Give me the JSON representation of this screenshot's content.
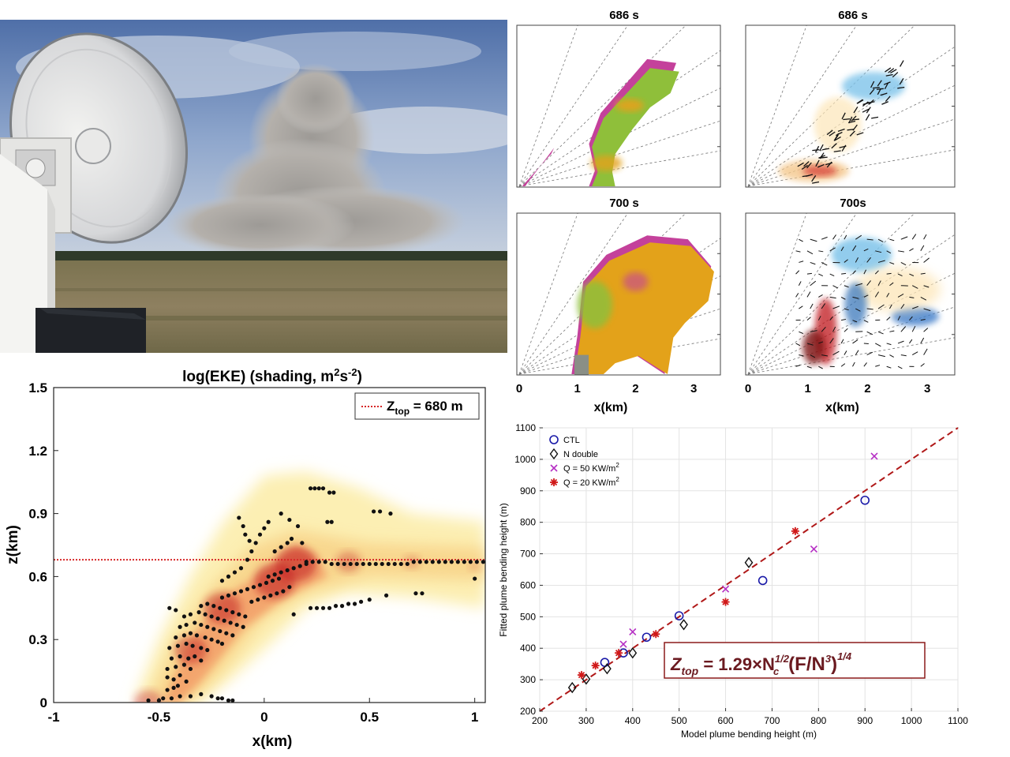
{
  "photo": {
    "description_icon": "radar-dish-photo-icon"
  },
  "rhi": {
    "panels": [
      {
        "title": "686 s",
        "kind": "reflectivity"
      },
      {
        "title": "686 s",
        "kind": "vorticity"
      },
      {
        "title": "700 s",
        "kind": "reflectivity"
      },
      {
        "title": "700s",
        "kind": "vorticity"
      }
    ],
    "x_ticks": [
      "0",
      "1",
      "2",
      "3"
    ],
    "xlabel": "x(km)"
  },
  "chart_data": [
    {
      "type": "heatmap",
      "title": "log(EKE) (shading, m2s-2)",
      "title_parts": {
        "pre": "log(EKE) (shading, m",
        "sup1": "2",
        "mid": "s",
        "sup2": "-2",
        "post": ")"
      },
      "xlabel": "x(km)",
      "ylabel": "z(km)",
      "xlim": [
        -1,
        1.05
      ],
      "ylim": [
        0,
        1.5
      ],
      "x_ticks": [
        -1,
        -0.5,
        0,
        0.5,
        1
      ],
      "y_ticks": [
        0,
        0.3,
        0.6,
        0.9,
        1.2,
        1.5
      ],
      "x_tick_labels": [
        "-1",
        "-0.5",
        "0",
        "0.5",
        "1"
      ],
      "y_tick_labels": [
        "0",
        "0.3",
        "0.6",
        "0.9",
        "1.2",
        "1.5"
      ],
      "legend": {
        "label_pre": "Z",
        "label_sub": "top",
        "label_post": " = 680 m",
        "placement": "top-right",
        "color": "#d62728"
      },
      "reference_line": {
        "z": 0.68,
        "style": "dotted",
        "color": "#d62728"
      },
      "scatter_points": [
        [
          -0.55,
          0.01
        ],
        [
          -0.5,
          0.01
        ],
        [
          -0.48,
          0.02
        ],
        [
          -0.44,
          0.02
        ],
        [
          -0.4,
          0.03
        ],
        [
          -0.35,
          0.03
        ],
        [
          -0.3,
          0.04
        ],
        [
          -0.25,
          0.03
        ],
        [
          -0.22,
          0.02
        ],
        [
          -0.2,
          0.02
        ],
        [
          -0.17,
          0.01
        ],
        [
          -0.15,
          0.01
        ],
        [
          -0.46,
          0.06
        ],
        [
          -0.43,
          0.07
        ],
        [
          -0.41,
          0.08
        ],
        [
          -0.46,
          0.12
        ],
        [
          -0.43,
          0.11
        ],
        [
          -0.4,
          0.13
        ],
        [
          -0.37,
          0.1
        ],
        [
          -0.46,
          0.16
        ],
        [
          -0.42,
          0.17
        ],
        [
          -0.38,
          0.18
        ],
        [
          -0.35,
          0.16
        ],
        [
          -0.44,
          0.21
        ],
        [
          -0.4,
          0.22
        ],
        [
          -0.36,
          0.21
        ],
        [
          -0.33,
          0.22
        ],
        [
          -0.3,
          0.2
        ],
        [
          -0.45,
          0.26
        ],
        [
          -0.41,
          0.27
        ],
        [
          -0.37,
          0.28
        ],
        [
          -0.34,
          0.27
        ],
        [
          -0.3,
          0.26
        ],
        [
          -0.27,
          0.25
        ],
        [
          -0.42,
          0.31
        ],
        [
          -0.38,
          0.32
        ],
        [
          -0.35,
          0.33
        ],
        [
          -0.32,
          0.32
        ],
        [
          -0.28,
          0.31
        ],
        [
          -0.25,
          0.3
        ],
        [
          -0.22,
          0.29
        ],
        [
          -0.2,
          0.28
        ],
        [
          -0.4,
          0.36
        ],
        [
          -0.37,
          0.37
        ],
        [
          -0.33,
          0.38
        ],
        [
          -0.3,
          0.37
        ],
        [
          -0.27,
          0.36
        ],
        [
          -0.24,
          0.35
        ],
        [
          -0.21,
          0.34
        ],
        [
          -0.18,
          0.33
        ],
        [
          -0.15,
          0.32
        ],
        [
          -0.38,
          0.41
        ],
        [
          -0.35,
          0.42
        ],
        [
          -0.31,
          0.43
        ],
        [
          -0.28,
          0.42
        ],
        [
          -0.25,
          0.41
        ],
        [
          -0.22,
          0.4
        ],
        [
          -0.19,
          0.39
        ],
        [
          -0.16,
          0.38
        ],
        [
          -0.13,
          0.37
        ],
        [
          -0.1,
          0.36
        ],
        [
          -0.45,
          0.45
        ],
        [
          -0.42,
          0.44
        ],
        [
          -0.3,
          0.46
        ],
        [
          -0.27,
          0.47
        ],
        [
          -0.24,
          0.46
        ],
        [
          -0.21,
          0.45
        ],
        [
          -0.18,
          0.44
        ],
        [
          -0.15,
          0.43
        ],
        [
          -0.12,
          0.42
        ],
        [
          -0.09,
          0.41
        ],
        [
          -0.2,
          0.5
        ],
        [
          -0.17,
          0.51
        ],
        [
          -0.14,
          0.52
        ],
        [
          -0.11,
          0.53
        ],
        [
          -0.08,
          0.54
        ],
        [
          -0.05,
          0.55
        ],
        [
          -0.02,
          0.56
        ],
        [
          0.01,
          0.57
        ],
        [
          0.04,
          0.58
        ],
        [
          0.07,
          0.59
        ],
        [
          -0.06,
          0.48
        ],
        [
          -0.03,
          0.49
        ],
        [
          0.0,
          0.5
        ],
        [
          0.03,
          0.51
        ],
        [
          0.06,
          0.52
        ],
        [
          0.09,
          0.53
        ],
        [
          0.12,
          0.55
        ],
        [
          0.02,
          0.6
        ],
        [
          0.05,
          0.61
        ],
        [
          0.08,
          0.62
        ],
        [
          0.11,
          0.63
        ],
        [
          0.14,
          0.64
        ],
        [
          0.17,
          0.65
        ],
        [
          0.2,
          0.66
        ],
        [
          0.2,
          0.67
        ],
        [
          0.23,
          0.67
        ],
        [
          0.26,
          0.67
        ],
        [
          0.29,
          0.67
        ],
        [
          0.32,
          0.66
        ],
        [
          0.35,
          0.66
        ],
        [
          0.38,
          0.66
        ],
        [
          0.41,
          0.66
        ],
        [
          0.44,
          0.66
        ],
        [
          0.47,
          0.66
        ],
        [
          0.5,
          0.66
        ],
        [
          0.53,
          0.66
        ],
        [
          0.56,
          0.66
        ],
        [
          0.59,
          0.66
        ],
        [
          0.62,
          0.66
        ],
        [
          0.65,
          0.66
        ],
        [
          0.68,
          0.66
        ],
        [
          0.71,
          0.67
        ],
        [
          0.74,
          0.67
        ],
        [
          0.77,
          0.67
        ],
        [
          0.8,
          0.67
        ],
        [
          0.83,
          0.67
        ],
        [
          0.86,
          0.67
        ],
        [
          0.89,
          0.67
        ],
        [
          0.92,
          0.67
        ],
        [
          0.95,
          0.67
        ],
        [
          0.98,
          0.67
        ],
        [
          1.01,
          0.67
        ],
        [
          1.04,
          0.67
        ],
        [
          -0.2,
          0.58
        ],
        [
          -0.17,
          0.6
        ],
        [
          -0.14,
          0.62
        ],
        [
          -0.11,
          0.64
        ],
        [
          -0.08,
          0.68
        ],
        [
          -0.06,
          0.72
        ],
        [
          -0.04,
          0.76
        ],
        [
          -0.02,
          0.8
        ],
        [
          0.0,
          0.83
        ],
        [
          0.02,
          0.86
        ],
        [
          -0.12,
          0.88
        ],
        [
          -0.1,
          0.84
        ],
        [
          -0.09,
          0.8
        ],
        [
          -0.07,
          0.77
        ],
        [
          0.08,
          0.9
        ],
        [
          0.12,
          0.87
        ],
        [
          0.16,
          0.84
        ],
        [
          0.13,
          0.78
        ],
        [
          0.18,
          0.76
        ],
        [
          0.22,
          1.02
        ],
        [
          0.24,
          1.02
        ],
        [
          0.26,
          1.02
        ],
        [
          0.28,
          1.02
        ],
        [
          0.31,
          1.0
        ],
        [
          0.33,
          1.0
        ],
        [
          0.22,
          0.45
        ],
        [
          0.25,
          0.45
        ],
        [
          0.28,
          0.45
        ],
        [
          0.31,
          0.45
        ],
        [
          0.34,
          0.46
        ],
        [
          0.37,
          0.46
        ],
        [
          0.4,
          0.47
        ],
        [
          0.43,
          0.47
        ],
        [
          0.46,
          0.48
        ],
        [
          0.5,
          0.49
        ],
        [
          0.52,
          0.91
        ],
        [
          0.55,
          0.91
        ],
        [
          0.6,
          0.9
        ],
        [
          0.58,
          0.51
        ],
        [
          0.72,
          0.52
        ],
        [
          0.75,
          0.52
        ],
        [
          1.0,
          0.59
        ],
        [
          0.05,
          0.72
        ],
        [
          0.08,
          0.74
        ],
        [
          0.11,
          0.76
        ],
        [
          0.14,
          0.42
        ],
        [
          0.3,
          0.86
        ],
        [
          0.32,
          0.86
        ]
      ],
      "eke_core": [
        {
          "x": -0.55,
          "z": 0.0,
          "w": 0.7
        },
        {
          "x": -0.35,
          "z": 0.25,
          "w": 0.8
        },
        {
          "x": -0.2,
          "z": 0.45,
          "w": 0.9
        },
        {
          "x": 0.05,
          "z": 0.58,
          "w": 1.0
        },
        {
          "x": 0.15,
          "z": 0.66,
          "w": 1.0
        },
        {
          "x": 0.4,
          "z": 0.67,
          "w": 0.6
        },
        {
          "x": 0.7,
          "z": 0.67,
          "w": 0.4
        },
        {
          "x": 1.0,
          "z": 0.65,
          "w": 0.3
        }
      ]
    },
    {
      "type": "scatter",
      "xlabel": "Model plume bending height (m)",
      "ylabel": "Fitted plume bending height (m)",
      "xlim": [
        200,
        1100
      ],
      "ylim": [
        200,
        1100
      ],
      "x_ticks": [
        200,
        300,
        400,
        500,
        600,
        700,
        800,
        900,
        1000,
        1100
      ],
      "y_ticks": [
        200,
        300,
        400,
        500,
        600,
        700,
        800,
        900,
        1000,
        1100
      ],
      "x_tick_labels": [
        "200",
        "300",
        "400",
        "500",
        "600",
        "700",
        "800",
        "900",
        "1000",
        "1100"
      ],
      "y_tick_labels": [
        "200",
        "300",
        "400",
        "500",
        "600",
        "700",
        "800",
        "900",
        "1000",
        "1100"
      ],
      "legend_placement": "top-left",
      "fit_line": {
        "slope": 1,
        "intercept": 0,
        "style": "dashed",
        "color": "#b01818"
      },
      "series": [
        {
          "name": "CTL",
          "marker": "circle",
          "color": "#1a1aa8",
          "points": [
            [
              340,
              355
            ],
            [
              380,
              385
            ],
            [
              430,
              435
            ],
            [
              500,
              503
            ],
            [
              680,
              615
            ],
            [
              900,
              870
            ]
          ]
        },
        {
          "name": "N double",
          "marker": "diamond",
          "color": "#111111",
          "points": [
            [
              270,
              275
            ],
            [
              300,
              302
            ],
            [
              345,
              335
            ],
            [
              400,
              385
            ],
            [
              510,
              475
            ],
            [
              650,
              672
            ]
          ]
        },
        {
          "name": "Q = 50 KW/m2",
          "name_parts": {
            "pre": "Q = 50 KW/m",
            "sup": "2"
          },
          "marker": "x",
          "color": "#b52fc4",
          "points": [
            [
              380,
              413
            ],
            [
              400,
              452
            ],
            [
              600,
              588
            ],
            [
              790,
              715
            ],
            [
              920,
              1010
            ]
          ]
        },
        {
          "name": "Q = 20 KW/m2",
          "name_parts": {
            "pre": "Q = 20 KW/m",
            "sup": "2"
          },
          "marker": "asterisk",
          "color": "#d01818",
          "points": [
            [
              290,
              315
            ],
            [
              320,
              345
            ],
            [
              370,
              385
            ],
            [
              450,
              445
            ],
            [
              600,
              547
            ],
            [
              750,
              772
            ]
          ]
        }
      ],
      "formula": {
        "lhs": "Z",
        "lhs_sub": "top",
        "eq": " = 1.29×N",
        "n_sub": "c",
        "n_sup": "1/2",
        "paren": "(F/N",
        "cube": "3",
        "close": ")",
        "power": "1/4"
      }
    }
  ],
  "colors": {
    "rhi_green": "#8fbf3a",
    "rhi_orange": "#e3a21a",
    "rhi_magenta": "#c4419b",
    "eke_light": "#fcefb3",
    "eke_mid": "#f3a06a",
    "eke_dark": "#c0121a",
    "formula_color": "#6b1a20"
  }
}
